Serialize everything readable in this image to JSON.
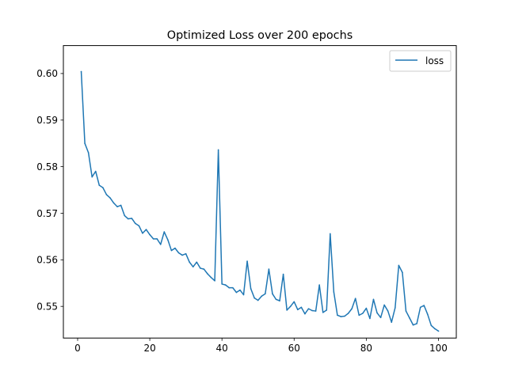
{
  "chart_data": {
    "type": "line",
    "title": "Optimized Loss over 200 epochs",
    "xlabel": "",
    "ylabel": "",
    "xlim": [
      -3.95,
      104.95
    ],
    "ylim": [
      0.5432,
      0.606
    ],
    "xticks": [
      0,
      20,
      40,
      60,
      80,
      100
    ],
    "yticks": [
      0.55,
      0.56,
      0.57,
      0.58,
      0.59,
      0.6
    ],
    "xtick_labels": [
      "0",
      "20",
      "40",
      "60",
      "80",
      "100"
    ],
    "ytick_labels": [
      "0.55",
      "0.56",
      "0.57",
      "0.58",
      "0.59",
      "0.60"
    ],
    "grid": false,
    "legend": {
      "position": "top-right",
      "entries": [
        "loss"
      ]
    },
    "series": [
      {
        "name": "loss",
        "color": "#1f77b4",
        "x": [
          1,
          2,
          3,
          4,
          5,
          6,
          7,
          8,
          9,
          10,
          11,
          12,
          13,
          14,
          15,
          16,
          17,
          18,
          19,
          20,
          21,
          22,
          23,
          24,
          25,
          26,
          27,
          28,
          29,
          30,
          31,
          32,
          33,
          34,
          35,
          36,
          37,
          38,
          39,
          40,
          41,
          42,
          43,
          44,
          45,
          46,
          47,
          48,
          49,
          50,
          51,
          52,
          53,
          54,
          55,
          56,
          57,
          58,
          59,
          60,
          61,
          62,
          63,
          64,
          65,
          66,
          67,
          68,
          69,
          70,
          71,
          72,
          73,
          74,
          75,
          76,
          77,
          78,
          79,
          80,
          81,
          82,
          83,
          84,
          85,
          86,
          87,
          88,
          89,
          90,
          91,
          92,
          93,
          94,
          95,
          96,
          97,
          98,
          99,
          100
        ],
        "values": [
          0.6004,
          0.585,
          0.583,
          0.5778,
          0.579,
          0.576,
          0.5755,
          0.574,
          0.5733,
          0.5722,
          0.5714,
          0.5717,
          0.5695,
          0.5688,
          0.5689,
          0.5678,
          0.5673,
          0.5657,
          0.5665,
          0.5654,
          0.5645,
          0.5645,
          0.5633,
          0.566,
          0.5643,
          0.562,
          0.5625,
          0.5615,
          0.561,
          0.5613,
          0.5595,
          0.5585,
          0.5595,
          0.5582,
          0.558,
          0.557,
          0.5562,
          0.5555,
          0.5836,
          0.5548,
          0.5546,
          0.554,
          0.554,
          0.553,
          0.5535,
          0.5525,
          0.5597,
          0.5538,
          0.5518,
          0.5513,
          0.5522,
          0.5527,
          0.558,
          0.5527,
          0.5515,
          0.5512,
          0.5569,
          0.5492,
          0.55,
          0.551,
          0.5493,
          0.5498,
          0.5484,
          0.5495,
          0.5491,
          0.549,
          0.5546,
          0.5487,
          0.5492,
          0.5656,
          0.5531,
          0.5481,
          0.5478,
          0.5479,
          0.5485,
          0.5495,
          0.5517,
          0.5481,
          0.5485,
          0.5496,
          0.5474,
          0.5515,
          0.5486,
          0.5476,
          0.5503,
          0.549,
          0.5466,
          0.5497,
          0.5588,
          0.5573,
          0.549,
          0.5475,
          0.546,
          0.5463,
          0.5498,
          0.5502,
          0.5483,
          0.5459,
          0.5452,
          0.5447
        ]
      }
    ]
  }
}
